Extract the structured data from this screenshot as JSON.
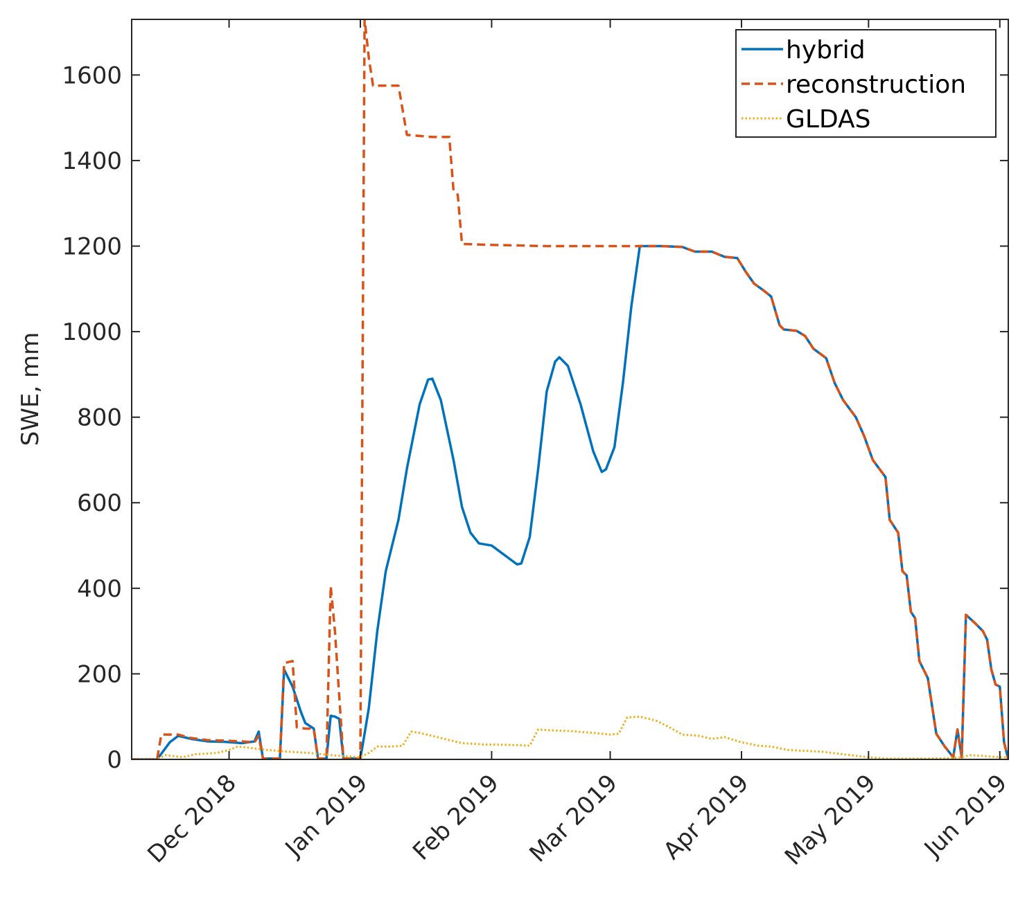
{
  "chart_data": {
    "type": "line",
    "title": "",
    "xlabel": "",
    "ylabel": "SWE, mm",
    "x_axis_type": "date",
    "xlim": [
      "2018-11-08",
      "2019-06-03"
    ],
    "ylim": [
      0,
      1730
    ],
    "yticks": [
      0,
      200,
      400,
      600,
      800,
      1000,
      1200,
      1400,
      1600
    ],
    "xticks": [
      {
        "date": "2018-12-01",
        "label": "Dec 2018"
      },
      {
        "date": "2019-01-01",
        "label": "Jan 2019"
      },
      {
        "date": "2019-02-01",
        "label": "Feb 2019"
      },
      {
        "date": "2019-03-01",
        "label": "Mar 2019"
      },
      {
        "date": "2019-04-01",
        "label": "Apr 2019"
      },
      {
        "date": "2019-05-01",
        "label": "May 2019"
      },
      {
        "date": "2019-06-01",
        "label": "Jun 2019"
      }
    ],
    "grid": false,
    "legend_position": "top-right",
    "series": [
      {
        "name": "hybrid",
        "color": "#0072BD",
        "style": "solid",
        "points": [
          [
            "2018-11-08",
            0
          ],
          [
            "2018-11-14",
            0
          ],
          [
            "2018-11-17",
            40
          ],
          [
            "2018-11-19",
            55
          ],
          [
            "2018-11-22",
            48
          ],
          [
            "2018-11-26",
            42
          ],
          [
            "2018-11-30",
            41
          ],
          [
            "2018-12-04",
            38
          ],
          [
            "2018-12-07",
            42
          ],
          [
            "2018-12-08",
            65
          ],
          [
            "2018-12-09",
            2
          ],
          [
            "2018-12-13",
            2
          ],
          [
            "2018-12-14",
            210
          ],
          [
            "2018-12-16",
            170
          ],
          [
            "2018-12-18",
            110
          ],
          [
            "2018-12-19",
            85
          ],
          [
            "2018-12-21",
            72
          ],
          [
            "2018-12-22",
            2
          ],
          [
            "2018-12-24",
            2
          ],
          [
            "2018-12-25",
            102
          ],
          [
            "2018-12-26",
            100
          ],
          [
            "2018-12-27",
            95
          ],
          [
            "2018-12-28",
            2
          ],
          [
            "2019-01-01",
            2
          ],
          [
            "2019-01-02",
            60
          ],
          [
            "2019-01-03",
            120
          ],
          [
            "2019-01-05",
            300
          ],
          [
            "2019-01-07",
            440
          ],
          [
            "2019-01-10",
            560
          ],
          [
            "2019-01-12",
            680
          ],
          [
            "2019-01-15",
            830
          ],
          [
            "2019-01-17",
            888
          ],
          [
            "2019-01-18",
            890
          ],
          [
            "2019-01-20",
            840
          ],
          [
            "2019-01-23",
            700
          ],
          [
            "2019-01-25",
            590
          ],
          [
            "2019-01-27",
            530
          ],
          [
            "2019-01-29",
            505
          ],
          [
            "2019-02-01",
            500
          ],
          [
            "2019-02-04",
            478
          ],
          [
            "2019-02-07",
            456
          ],
          [
            "2019-02-08",
            458
          ],
          [
            "2019-02-10",
            520
          ],
          [
            "2019-02-12",
            680
          ],
          [
            "2019-02-14",
            860
          ],
          [
            "2019-02-16",
            930
          ],
          [
            "2019-02-17",
            940
          ],
          [
            "2019-02-19",
            920
          ],
          [
            "2019-02-22",
            830
          ],
          [
            "2019-02-25",
            720
          ],
          [
            "2019-02-27",
            672
          ],
          [
            "2019-02-28",
            678
          ],
          [
            "2019-03-02",
            730
          ],
          [
            "2019-03-04",
            880
          ],
          [
            "2019-03-06",
            1060
          ],
          [
            "2019-03-08",
            1200
          ],
          [
            "2019-03-13",
            1200
          ],
          [
            "2019-03-18",
            1198
          ],
          [
            "2019-03-21",
            1187
          ],
          [
            "2019-03-25",
            1187
          ],
          [
            "2019-03-28",
            1175
          ],
          [
            "2019-03-31",
            1172
          ],
          [
            "2019-04-02",
            1140
          ],
          [
            "2019-04-04",
            1112
          ],
          [
            "2019-04-06",
            1098
          ],
          [
            "2019-04-08",
            1082
          ],
          [
            "2019-04-10",
            1015
          ],
          [
            "2019-04-11",
            1005
          ],
          [
            "2019-04-14",
            1002
          ],
          [
            "2019-04-16",
            990
          ],
          [
            "2019-04-18",
            960
          ],
          [
            "2019-04-21",
            938
          ],
          [
            "2019-04-23",
            880
          ],
          [
            "2019-04-25",
            840
          ],
          [
            "2019-04-28",
            800
          ],
          [
            "2019-04-30",
            755
          ],
          [
            "2019-05-02",
            700
          ],
          [
            "2019-05-05",
            660
          ],
          [
            "2019-05-06",
            560
          ],
          [
            "2019-05-08",
            530
          ],
          [
            "2019-05-09",
            440
          ],
          [
            "2019-05-10",
            430
          ],
          [
            "2019-05-11",
            345
          ],
          [
            "2019-05-12",
            330
          ],
          [
            "2019-05-13",
            230
          ],
          [
            "2019-05-15",
            190
          ],
          [
            "2019-05-17",
            60
          ],
          [
            "2019-05-19",
            30
          ],
          [
            "2019-05-21",
            5
          ],
          [
            "2019-05-22",
            70
          ],
          [
            "2019-05-23",
            5
          ],
          [
            "2019-05-24",
            338
          ],
          [
            "2019-05-26",
            320
          ],
          [
            "2019-05-28",
            300
          ],
          [
            "2019-05-29",
            280
          ],
          [
            "2019-05-30",
            210
          ],
          [
            "2019-05-31",
            175
          ],
          [
            "2019-06-01",
            170
          ],
          [
            "2019-06-02",
            40
          ],
          [
            "2019-06-03",
            0
          ]
        ]
      },
      {
        "name": "reconstruction",
        "color": "#D95319",
        "style": "dashed",
        "points": [
          [
            "2018-11-08",
            0
          ],
          [
            "2018-11-14",
            0
          ],
          [
            "2018-11-15",
            58
          ],
          [
            "2018-11-19",
            58
          ],
          [
            "2018-11-22",
            50
          ],
          [
            "2018-11-26",
            45
          ],
          [
            "2018-11-30",
            44
          ],
          [
            "2018-12-04",
            42
          ],
          [
            "2018-12-07",
            40
          ],
          [
            "2018-12-08",
            55
          ],
          [
            "2018-12-09",
            2
          ],
          [
            "2018-12-13",
            2
          ],
          [
            "2018-12-14",
            225
          ],
          [
            "2018-12-16",
            230
          ],
          [
            "2018-12-17",
            75
          ],
          [
            "2018-12-19",
            72
          ],
          [
            "2018-12-21",
            72
          ],
          [
            "2018-12-22",
            2
          ],
          [
            "2018-12-24",
            2
          ],
          [
            "2018-12-25",
            405
          ],
          [
            "2018-12-26",
            300
          ],
          [
            "2018-12-27",
            150
          ],
          [
            "2018-12-28",
            2
          ],
          [
            "2019-01-01",
            2
          ],
          [
            "2019-01-02",
            1730
          ],
          [
            "2019-01-03",
            1640
          ],
          [
            "2019-01-04",
            1575
          ],
          [
            "2019-01-10",
            1575
          ],
          [
            "2019-01-12",
            1460
          ],
          [
            "2019-01-18",
            1455
          ],
          [
            "2019-01-22",
            1455
          ],
          [
            "2019-01-23",
            1330
          ],
          [
            "2019-01-24",
            1320
          ],
          [
            "2019-01-25",
            1205
          ],
          [
            "2019-01-31",
            1203
          ],
          [
            "2019-02-14",
            1200
          ],
          [
            "2019-03-08",
            1200
          ],
          [
            "2019-03-13",
            1200
          ],
          [
            "2019-03-18",
            1198
          ],
          [
            "2019-03-21",
            1187
          ],
          [
            "2019-03-25",
            1187
          ],
          [
            "2019-03-28",
            1175
          ],
          [
            "2019-03-31",
            1172
          ],
          [
            "2019-04-02",
            1140
          ],
          [
            "2019-04-04",
            1112
          ],
          [
            "2019-04-06",
            1098
          ],
          [
            "2019-04-08",
            1082
          ],
          [
            "2019-04-10",
            1015
          ],
          [
            "2019-04-11",
            1005
          ],
          [
            "2019-04-14",
            1002
          ],
          [
            "2019-04-16",
            990
          ],
          [
            "2019-04-18",
            960
          ],
          [
            "2019-04-21",
            938
          ],
          [
            "2019-04-23",
            880
          ],
          [
            "2019-04-25",
            840
          ],
          [
            "2019-04-28",
            800
          ],
          [
            "2019-04-30",
            755
          ],
          [
            "2019-05-02",
            700
          ],
          [
            "2019-05-05",
            660
          ],
          [
            "2019-05-06",
            560
          ],
          [
            "2019-05-08",
            530
          ],
          [
            "2019-05-09",
            440
          ],
          [
            "2019-05-10",
            430
          ],
          [
            "2019-05-11",
            345
          ],
          [
            "2019-05-12",
            330
          ],
          [
            "2019-05-13",
            230
          ],
          [
            "2019-05-15",
            190
          ],
          [
            "2019-05-17",
            60
          ],
          [
            "2019-05-19",
            30
          ],
          [
            "2019-05-21",
            5
          ],
          [
            "2019-05-22",
            70
          ],
          [
            "2019-05-23",
            5
          ],
          [
            "2019-05-24",
            338
          ],
          [
            "2019-05-26",
            320
          ],
          [
            "2019-05-28",
            300
          ],
          [
            "2019-05-29",
            280
          ],
          [
            "2019-05-30",
            210
          ],
          [
            "2019-05-31",
            175
          ],
          [
            "2019-06-01",
            170
          ],
          [
            "2019-06-02",
            40
          ],
          [
            "2019-06-03",
            0
          ]
        ]
      },
      {
        "name": "GLDAS",
        "color": "#EDB120",
        "style": "dotted",
        "points": [
          [
            "2018-11-08",
            0
          ],
          [
            "2018-11-14",
            0
          ],
          [
            "2018-11-16",
            10
          ],
          [
            "2018-11-20",
            5
          ],
          [
            "2018-11-23",
            12
          ],
          [
            "2018-11-28",
            15
          ],
          [
            "2018-12-01",
            22
          ],
          [
            "2018-12-03",
            30
          ],
          [
            "2018-12-05",
            28
          ],
          [
            "2018-12-10",
            22
          ],
          [
            "2018-12-15",
            18
          ],
          [
            "2018-12-20",
            15
          ],
          [
            "2018-12-25",
            10
          ],
          [
            "2019-01-01",
            5
          ],
          [
            "2019-01-03",
            15
          ],
          [
            "2019-01-05",
            30
          ],
          [
            "2019-01-08",
            30
          ],
          [
            "2019-01-11",
            32
          ],
          [
            "2019-01-13",
            65
          ],
          [
            "2019-01-15",
            62
          ],
          [
            "2019-01-20",
            50
          ],
          [
            "2019-01-25",
            38
          ],
          [
            "2019-01-30",
            35
          ],
          [
            "2019-02-05",
            34
          ],
          [
            "2019-02-10",
            32
          ],
          [
            "2019-02-12",
            70
          ],
          [
            "2019-02-15",
            68
          ],
          [
            "2019-02-20",
            66
          ],
          [
            "2019-02-25",
            62
          ],
          [
            "2019-03-01",
            58
          ],
          [
            "2019-03-03",
            60
          ],
          [
            "2019-03-05",
            98
          ],
          [
            "2019-03-08",
            100
          ],
          [
            "2019-03-12",
            90
          ],
          [
            "2019-03-15",
            75
          ],
          [
            "2019-03-18",
            58
          ],
          [
            "2019-03-22",
            55
          ],
          [
            "2019-03-25",
            48
          ],
          [
            "2019-03-28",
            52
          ],
          [
            "2019-04-01",
            40
          ],
          [
            "2019-04-05",
            32
          ],
          [
            "2019-04-08",
            30
          ],
          [
            "2019-04-12",
            22
          ],
          [
            "2019-04-20",
            18
          ],
          [
            "2019-04-25",
            12
          ],
          [
            "2019-05-01",
            5
          ],
          [
            "2019-05-05",
            2
          ],
          [
            "2019-05-15",
            2
          ],
          [
            "2019-05-20",
            3
          ],
          [
            "2019-05-23",
            5
          ],
          [
            "2019-05-25",
            10
          ],
          [
            "2019-05-28",
            8
          ],
          [
            "2019-06-01",
            5
          ],
          [
            "2019-06-03",
            5
          ]
        ]
      }
    ]
  }
}
